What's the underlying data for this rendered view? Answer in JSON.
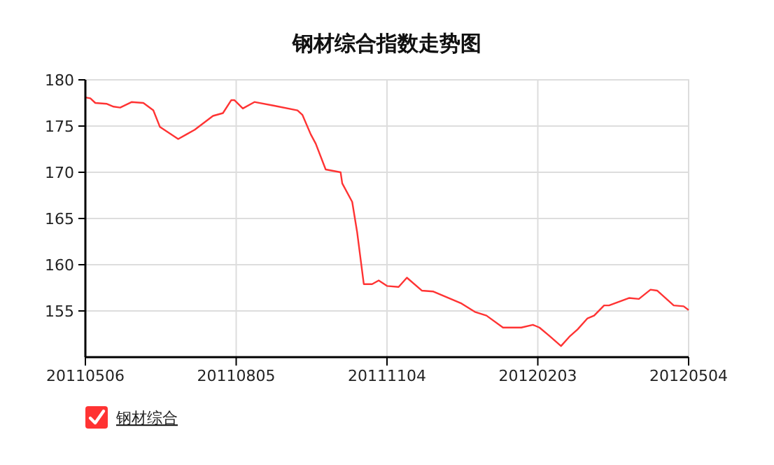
{
  "chart_data": {
    "type": "line",
    "title": "钢材综合指数走势图",
    "x": [
      "2011-05-06",
      "2011-05-09",
      "2011-05-12",
      "2011-05-19",
      "2011-05-23",
      "2011-05-27",
      "2011-06-03",
      "2011-06-10",
      "2011-06-16",
      "2011-06-20",
      "2011-07-01",
      "2011-07-06",
      "2011-07-11",
      "2011-07-22",
      "2011-07-28",
      "2011-08-02",
      "2011-08-04",
      "2011-08-09",
      "2011-08-16",
      "2011-08-28",
      "2011-09-11",
      "2011-09-14",
      "2011-09-19",
      "2011-09-22",
      "2011-09-28",
      "2011-10-07",
      "2011-10-08",
      "2011-10-14",
      "2011-10-17",
      "2011-10-21",
      "2011-10-26",
      "2011-10-30",
      "2011-11-04",
      "2011-11-11",
      "2011-11-16",
      "2011-11-25",
      "2011-12-02",
      "2011-12-19",
      "2011-12-27",
      "2012-01-03",
      "2012-01-13",
      "2012-01-24",
      "2012-01-31",
      "2012-02-04",
      "2012-02-10",
      "2012-02-17",
      "2012-02-22",
      "2012-02-27",
      "2012-03-04",
      "2012-03-08",
      "2012-03-14",
      "2012-03-17",
      "2012-03-29",
      "2012-04-04",
      "2012-04-11",
      "2012-04-15",
      "2012-04-25",
      "2012-05-01",
      "2012-05-04"
    ],
    "series": [
      {
        "name": "钢材综合",
        "color": "#ff3333",
        "values": [
          178.1,
          178.0,
          177.5,
          177.4,
          177.1,
          177.0,
          177.6,
          177.5,
          176.7,
          174.9,
          173.6,
          174.1,
          174.6,
          176.1,
          176.4,
          177.8,
          177.8,
          176.9,
          177.6,
          177.2,
          176.7,
          176.2,
          174.1,
          173.1,
          170.3,
          170.0,
          168.8,
          166.8,
          163.5,
          157.9,
          157.9,
          158.3,
          157.7,
          157.6,
          158.6,
          157.2,
          157.1,
          155.8,
          154.9,
          154.5,
          153.2,
          153.2,
          153.5,
          153.2,
          152.3,
          151.2,
          152.2,
          153.0,
          154.2,
          154.5,
          155.6,
          155.6,
          156.4,
          156.3,
          157.3,
          157.2,
          155.6,
          155.5,
          155.1
        ]
      }
    ],
    "xlim": [
      "2011-05-06",
      "2012-05-04"
    ],
    "xticks": [
      {
        "value": "2011-05-06",
        "label": "20110506"
      },
      {
        "value": "2011-08-05",
        "label": "20110805"
      },
      {
        "value": "2011-11-04",
        "label": "20111104"
      },
      {
        "value": "2012-02-03",
        "label": "20120203"
      },
      {
        "value": "2012-05-04",
        "label": "20120504"
      }
    ],
    "ylim": [
      150,
      180
    ],
    "yticks": [
      155,
      160,
      165,
      170,
      175,
      180
    ],
    "grid": true,
    "legend": "bottom left",
    "marker": "none",
    "line_style": "solid"
  }
}
